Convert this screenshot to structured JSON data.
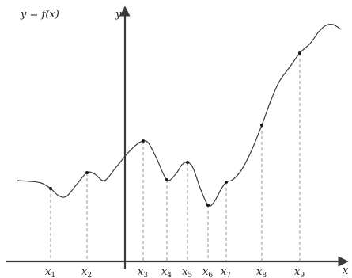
{
  "chart_data": {
    "type": "line",
    "title": "y = f(x)",
    "xlabel": "x",
    "ylabel": "y",
    "grid": false,
    "marked_points": [
      {
        "base": "x",
        "sub": "1"
      },
      {
        "base": "x",
        "sub": "2"
      },
      {
        "base": "x",
        "sub": "3"
      },
      {
        "base": "x",
        "sub": "4"
      },
      {
        "base": "x",
        "sub": "5"
      },
      {
        "base": "x",
        "sub": "6"
      },
      {
        "base": "x",
        "sub": "7"
      },
      {
        "base": "x",
        "sub": "8"
      },
      {
        "base": "x",
        "sub": "9"
      }
    ]
  }
}
